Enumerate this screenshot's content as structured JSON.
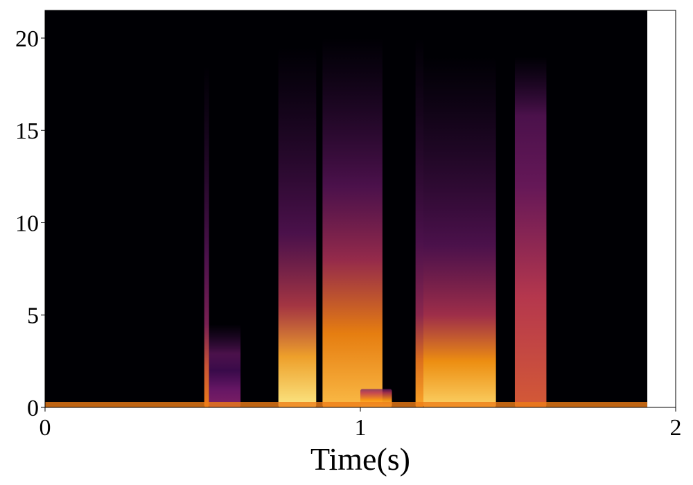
{
  "chart_data": {
    "type": "heatmap",
    "title": "",
    "xlabel": "Time(s)",
    "ylabel": "",
    "xlim": [
      0,
      2
    ],
    "ylim": [
      0,
      21.5
    ],
    "x_ticks": [
      "0",
      "1",
      "2"
    ],
    "y_ticks": [
      "0",
      "5",
      "10",
      "15",
      "20"
    ],
    "signal_end_time": 1.91,
    "colormap": "inferno",
    "background_color": "#000004",
    "baseline_band": {
      "t_start": 0,
      "t_end": 1.91,
      "f_max": 0.3,
      "intensity": 0.7
    },
    "bursts": [
      {
        "t_start": 0.505,
        "t_end": 0.52,
        "f_max": 18.5,
        "low_f_max": 4.5,
        "peak_intensity": 0.7
      },
      {
        "t_start": 0.52,
        "t_end": 0.62,
        "f_max": 4.5,
        "low_f_max": 2,
        "peak_intensity": 0.35
      },
      {
        "t_start": 0.74,
        "t_end": 0.86,
        "f_max": 19.5,
        "low_f_max": 5.5,
        "peak_intensity": 0.95
      },
      {
        "t_start": 0.88,
        "t_end": 1.07,
        "f_max": 20,
        "low_f_max": 8,
        "peak_intensity": 0.85
      },
      {
        "t_start": 1.0,
        "t_end": 1.1,
        "f_max": 1.0,
        "low_f_max": 0.8,
        "peak_intensity": 0.9
      },
      {
        "t_start": 1.175,
        "t_end": 1.2,
        "f_max": 20,
        "low_f_max": 5,
        "peak_intensity": 0.8
      },
      {
        "t_start": 1.2,
        "t_end": 1.43,
        "f_max": 19,
        "low_f_max": 5,
        "peak_intensity": 0.9
      },
      {
        "t_start": 1.49,
        "t_end": 1.59,
        "f_max": 19,
        "low_f_max": 12,
        "peak_intensity": 0.6
      }
    ]
  }
}
